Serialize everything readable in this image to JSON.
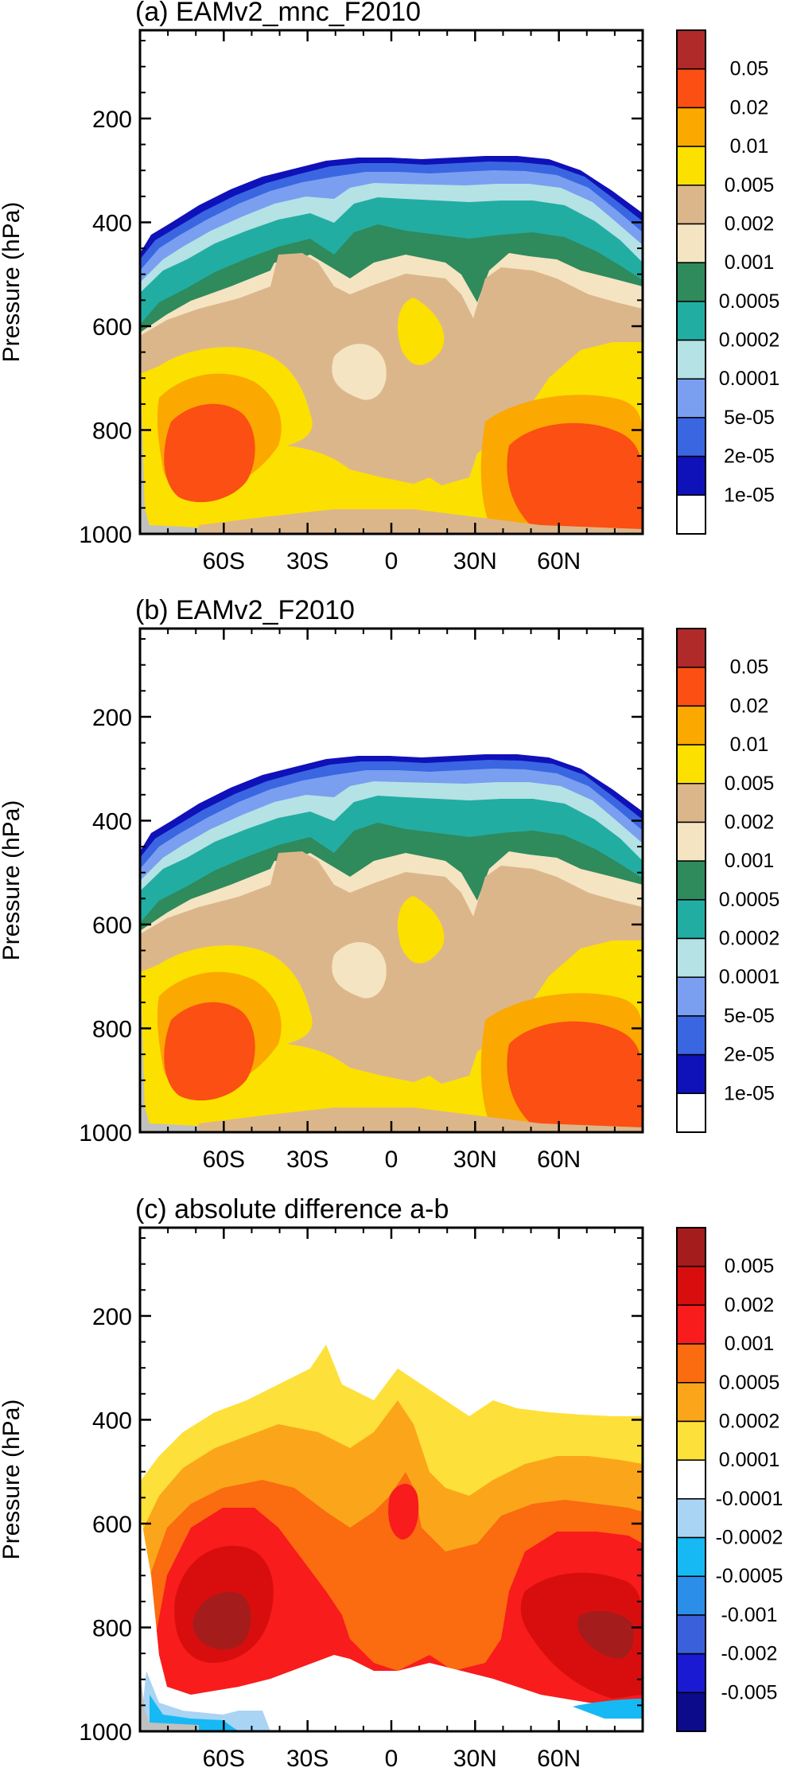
{
  "chart_data": [
    {
      "type": "heatmap",
      "panel": "a",
      "title": "(a) EAMv2_mnc_F2010",
      "ylabel": "Pressure (hPa)",
      "xlabel": "",
      "x_ticks": [
        "60S",
        "30S",
        "0",
        "30N",
        "60N"
      ],
      "x_tick_values": [
        -60,
        -30,
        0,
        30,
        60
      ],
      "xlim": [
        -90,
        90
      ],
      "y_ticks": [
        "200",
        "400",
        "600",
        "800",
        "1000"
      ],
      "y_tick_values": [
        200,
        400,
        600,
        800,
        1000
      ],
      "ylim": [
        1000,
        30
      ],
      "colorbar": {
        "labels": [
          "0.05",
          "0.02",
          "0.01",
          "0.005",
          "0.002",
          "0.001",
          "0.0005",
          "0.0002",
          "0.0001",
          "5e-05",
          "2e-05",
          "1e-05"
        ],
        "colors": [
          "#b02a2a",
          "#fb4f13",
          "#fba800",
          "#fce000",
          "#dcb68b",
          "#f4e4c2",
          "#2f8a5c",
          "#22ada3",
          "#b5e2e4",
          "#7a9ff0",
          "#3a66e2",
          "#0f12b8",
          "#ffffff"
        ]
      }
    },
    {
      "type": "heatmap",
      "panel": "b",
      "title": "(b) EAMv2_F2010",
      "ylabel": "Pressure (hPa)",
      "xlabel": "",
      "x_ticks": [
        "60S",
        "30S",
        "0",
        "30N",
        "60N"
      ],
      "x_tick_values": [
        -60,
        -30,
        0,
        30,
        60
      ],
      "xlim": [
        -90,
        90
      ],
      "y_ticks": [
        "200",
        "400",
        "600",
        "800",
        "1000"
      ],
      "y_tick_values": [
        200,
        400,
        600,
        800,
        1000
      ],
      "ylim": [
        1000,
        30
      ],
      "colorbar": {
        "labels": [
          "0.05",
          "0.02",
          "0.01",
          "0.005",
          "0.002",
          "0.001",
          "0.0005",
          "0.0002",
          "0.0001",
          "5e-05",
          "2e-05",
          "1e-05"
        ],
        "colors": [
          "#b02a2a",
          "#fb4f13",
          "#fba800",
          "#fce000",
          "#dcb68b",
          "#f4e4c2",
          "#2f8a5c",
          "#22ada3",
          "#b5e2e4",
          "#7a9ff0",
          "#3a66e2",
          "#0f12b8",
          "#ffffff"
        ]
      }
    },
    {
      "type": "heatmap",
      "panel": "c",
      "title": "(c) absolute difference a-b",
      "ylabel": "Pressure (hPa)",
      "xlabel": "",
      "x_ticks": [
        "60S",
        "30S",
        "0",
        "30N",
        "60N"
      ],
      "x_tick_values": [
        -60,
        -30,
        0,
        30,
        60
      ],
      "xlim": [
        -90,
        90
      ],
      "y_ticks": [
        "200",
        "400",
        "600",
        "800",
        "1000"
      ],
      "y_tick_values": [
        200,
        400,
        600,
        800,
        1000
      ],
      "ylim": [
        1000,
        30
      ],
      "colorbar": {
        "labels": [
          "0.005",
          "0.002",
          "0.001",
          "0.0005",
          "0.0002",
          "0.0001",
          "-0.0001",
          "-0.0002",
          "-0.0005",
          "-0.001",
          "-0.002",
          "-0.005"
        ],
        "colors": [
          "#a51c1c",
          "#d80e0e",
          "#f81c1c",
          "#fb6b10",
          "#fba61a",
          "#fde03a",
          "#ffffff",
          "#a9d4f4",
          "#16b9f4",
          "#2b8ee8",
          "#3a60dc",
          "#1a1ad2",
          "#0b0b8c"
        ]
      }
    }
  ]
}
